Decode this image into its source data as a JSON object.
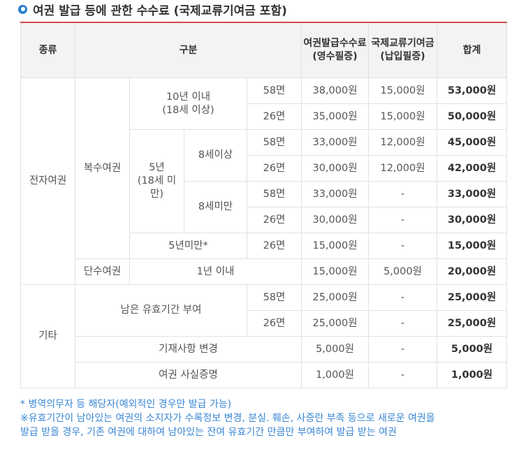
{
  "title": "여권 발급 등에 관한 수수료 (국제교류기여금 포함)",
  "header": {
    "type": "종류",
    "category": "구분",
    "fee": "여권발급수수료",
    "fee_sub": "(영수필증)",
    "contribution": "국제교류기여금",
    "contribution_sub": "(납입필증)",
    "total": "합계"
  },
  "labels": {
    "electronic": "전자여권",
    "multiple": "복수여권",
    "within10": "10년 이내",
    "over18": "(18세 이상)",
    "fiveyear": "5년",
    "under18": "(18세 미만)",
    "age8plus": "8세이상",
    "under8": "8세미만",
    "lessthan5": "5년미만*",
    "single": "단수여권",
    "within1": "1년 이내",
    "etc": "기타",
    "remaining": "남은 유효기간 부여",
    "change": "기재사항 변경",
    "proof": "여권 사실증명",
    "p58": "58면",
    "p26": "26면"
  },
  "rows": {
    "r1": {
      "fee": "38,000원",
      "contrib": "15,000원",
      "total": "53,000원"
    },
    "r2": {
      "fee": "35,000원",
      "contrib": "15,000원",
      "total": "50,000원"
    },
    "r3": {
      "fee": "33,000원",
      "contrib": "12,000원",
      "total": "45,000원"
    },
    "r4": {
      "fee": "30,000원",
      "contrib": "12,000원",
      "total": "42,000원"
    },
    "r5": {
      "fee": "33,000원",
      "contrib": "-",
      "total": "33,000원"
    },
    "r6": {
      "fee": "30,000원",
      "contrib": "-",
      "total": "30,000원"
    },
    "r7": {
      "fee": "15,000원",
      "contrib": "-",
      "total": "15,000원"
    },
    "r8": {
      "fee": "15,000원",
      "contrib": "5,000원",
      "total": "20,000원"
    },
    "r9": {
      "fee": "25,000원",
      "contrib": "-",
      "total": "25,000원"
    },
    "r10": {
      "fee": "25,000원",
      "contrib": "-",
      "total": "25,000원"
    },
    "r11": {
      "fee": "5,000원",
      "contrib": "-",
      "total": "5,000원"
    },
    "r12": {
      "fee": "1,000원",
      "contrib": "-",
      "total": "1,000원"
    }
  },
  "notes": {
    "line1": "* 병역의무자 등  해당자(예외적인 경우만 발급 가능)",
    "line2": "※유효기간이 남아있는 여권의 소지자가 수록정보 변경, 분실.  훼손, 사증란 부족 등으로 새로운 여권을",
    "line3": "발급 받을 경우, 기존 여권에 대하여 남아있는 잔여 유효기간 만큼만 부여하여 발급 받는 여권"
  },
  "colors": {
    "accent": "#2b7fd1",
    "header_rule": "#d94a4a",
    "notes": "#3a86d4"
  }
}
